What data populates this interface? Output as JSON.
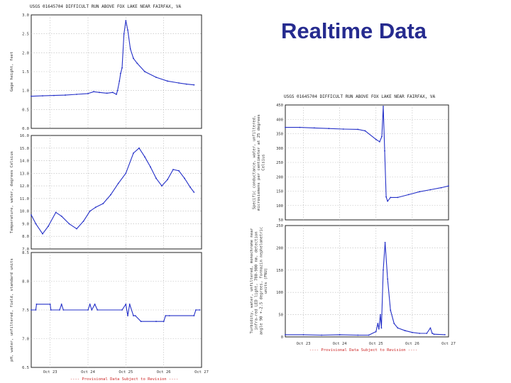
{
  "slide": {
    "title": "Realtime Data"
  },
  "chart_data": [
    {
      "type": "line",
      "title": "USGS 01645704 DIFFICULT RUN ABOVE FOX LAKE NEAR FAIRFAX, VA",
      "xlabel": "",
      "ylabel": "Gage height, feet",
      "x_domain": [
        0,
        4.5
      ],
      "x_ticks": [
        {
          "x": 0.5,
          "label": "Oct 23"
        },
        {
          "x": 1.5,
          "label": "Oct 24"
        },
        {
          "x": 2.5,
          "label": "Oct 25"
        },
        {
          "x": 3.5,
          "label": "Oct 26"
        },
        {
          "x": 4.5,
          "label": "Oct 27"
        }
      ],
      "ylim": [
        0.0,
        3.0
      ],
      "y_ticks": [
        "0.0",
        "0.5",
        "1.0",
        "1.5",
        "2.0",
        "2.5",
        "3.0"
      ],
      "grid": true,
      "series": [
        {
          "color": "#2430c8",
          "x": [
            0.0,
            0.3,
            0.6,
            0.9,
            1.2,
            1.5,
            1.65,
            1.8,
            2.0,
            2.15,
            2.25,
            2.28,
            2.33,
            2.36,
            2.4,
            2.45,
            2.5,
            2.55,
            2.62,
            2.7,
            2.8,
            3.0,
            3.3,
            3.6,
            3.9,
            4.1,
            4.3
          ],
          "y": [
            0.85,
            0.86,
            0.87,
            0.88,
            0.9,
            0.92,
            0.97,
            0.95,
            0.93,
            0.95,
            0.9,
            1.0,
            1.25,
            1.45,
            1.6,
            2.5,
            2.85,
            2.6,
            2.1,
            1.85,
            1.72,
            1.5,
            1.35,
            1.25,
            1.2,
            1.17,
            1.15
          ]
        }
      ]
    },
    {
      "type": "line",
      "ylabel": "Temperature, water, degrees Celsius",
      "x_domain": [
        0,
        4.5
      ],
      "ylim": [
        7.0,
        16.0
      ],
      "y_ticks": [
        "7.0",
        "8.0",
        "9.0",
        "10.0",
        "11.0",
        "12.0",
        "13.0",
        "14.0",
        "15.0",
        "16.0"
      ],
      "grid": true,
      "series": [
        {
          "color": "#2430c8",
          "x": [
            0.0,
            0.12,
            0.3,
            0.45,
            0.65,
            0.8,
            1.0,
            1.2,
            1.38,
            1.55,
            1.7,
            1.9,
            2.1,
            2.3,
            2.5,
            2.7,
            2.85,
            3.0,
            3.15,
            3.3,
            3.45,
            3.6,
            3.75,
            3.9,
            4.05,
            4.2,
            4.3
          ],
          "y": [
            9.7,
            9.0,
            8.2,
            8.8,
            9.9,
            9.6,
            9.0,
            8.6,
            9.2,
            10.0,
            10.3,
            10.6,
            11.3,
            12.2,
            13.0,
            14.6,
            15.0,
            14.3,
            13.5,
            12.6,
            12.0,
            12.5,
            13.3,
            13.2,
            12.6,
            11.9,
            11.5
          ]
        }
      ]
    },
    {
      "type": "line",
      "ylabel": "pH, water, unfiltered, field, standard units",
      "xlabel": "---- Provisional Data Subject to Revision ----",
      "x_domain": [
        0,
        4.5
      ],
      "x_ticks": [
        {
          "x": 0.5,
          "label": "Oct 23"
        },
        {
          "x": 1.5,
          "label": "Oct 24"
        },
        {
          "x": 2.5,
          "label": "Oct 25"
        },
        {
          "x": 3.5,
          "label": "Oct 26"
        },
        {
          "x": 4.5,
          "label": "Oct 27"
        }
      ],
      "ylim": [
        6.5,
        8.5
      ],
      "y_ticks": [
        "6.5",
        "7.0",
        "7.5",
        "8.0",
        "8.5"
      ],
      "grid": true,
      "series": [
        {
          "color": "#2430c8",
          "x": [
            0.0,
            0.12,
            0.14,
            0.5,
            0.52,
            0.75,
            0.8,
            0.85,
            1.5,
            1.55,
            1.6,
            1.68,
            1.75,
            2.4,
            2.5,
            2.55,
            2.6,
            2.7,
            2.75,
            2.9,
            3.3,
            3.5,
            3.55,
            3.65,
            4.3,
            4.35,
            4.45
          ],
          "y": [
            7.5,
            7.5,
            7.6,
            7.6,
            7.5,
            7.5,
            7.6,
            7.5,
            7.5,
            7.6,
            7.5,
            7.6,
            7.5,
            7.5,
            7.6,
            7.4,
            7.6,
            7.4,
            7.4,
            7.3,
            7.3,
            7.3,
            7.4,
            7.4,
            7.4,
            7.5,
            7.5
          ]
        }
      ]
    },
    {
      "type": "line",
      "title": "USGS 01645704 DIFFICULT RUN ABOVE FOX LAKE NEAR FAIRFAX, VA",
      "ylabel": "Specific conductance, water, unfiltered, microsiemens per centimeter at 25 degrees Celsius",
      "x_domain": [
        0,
        4.5
      ],
      "ylim": [
        50,
        450
      ],
      "y_ticks": [
        "50",
        "100",
        "150",
        "200",
        "250",
        "300",
        "350",
        "400",
        "450"
      ],
      "grid": true,
      "series": [
        {
          "color": "#2430c8",
          "x": [
            0.0,
            0.4,
            0.8,
            1.2,
            1.6,
            2.0,
            2.2,
            2.5,
            2.6,
            2.66,
            2.7,
            2.74,
            2.78,
            2.82,
            2.9,
            3.1,
            3.4,
            3.7,
            4.0,
            4.3,
            4.5
          ],
          "y": [
            372,
            372,
            370,
            368,
            366,
            365,
            360,
            330,
            322,
            340,
            445,
            290,
            130,
            115,
            128,
            128,
            138,
            148,
            155,
            162,
            168
          ]
        }
      ]
    },
    {
      "type": "line",
      "ylabel": "Turbidity, water, unfiltered, monochrome near infra-red LED light, 780-900 nm, detection angle 90 +-2.5 degrees, formazin nephelometric units (FNU)",
      "xlabel": "---- Provisional Data Subject to Revision ----",
      "x_domain": [
        0,
        4.5
      ],
      "x_ticks": [
        {
          "x": 0.5,
          "label": "Oct 23"
        },
        {
          "x": 1.5,
          "label": "Oct 24"
        },
        {
          "x": 2.5,
          "label": "Oct 25"
        },
        {
          "x": 3.5,
          "label": "Oct 26"
        },
        {
          "x": 4.5,
          "label": "Oct 27"
        }
      ],
      "ylim": [
        0,
        250
      ],
      "y_ticks": [
        "0",
        "50",
        "100",
        "150",
        "200",
        "250"
      ],
      "grid": true,
      "series": [
        {
          "color": "#2430c8",
          "x": [
            0.0,
            0.5,
            1.0,
            1.5,
            2.0,
            2.3,
            2.5,
            2.55,
            2.58,
            2.62,
            2.65,
            2.7,
            2.75,
            2.82,
            2.9,
            3.0,
            3.1,
            3.3,
            3.5,
            3.7,
            3.9,
            4.0,
            4.05,
            4.1,
            4.4
          ],
          "y": [
            5,
            5,
            4,
            5,
            4,
            4,
            12,
            30,
            18,
            50,
            20,
            150,
            212,
            130,
            60,
            30,
            20,
            14,
            10,
            8,
            8,
            20,
            8,
            6,
            5
          ]
        }
      ]
    }
  ]
}
